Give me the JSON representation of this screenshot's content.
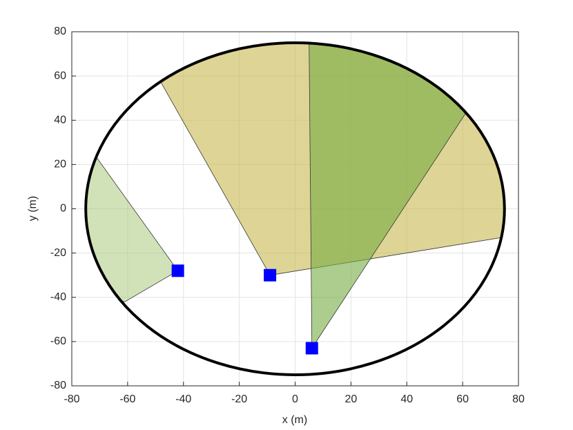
{
  "chart_data": {
    "type": "scatter",
    "xlabel": "x (m)",
    "ylabel": "y (m)",
    "xlim": [
      -80,
      80
    ],
    "ylim": [
      -80,
      80
    ],
    "xticks": [
      -80,
      -60,
      -40,
      -20,
      0,
      20,
      40,
      60,
      80
    ],
    "yticks": [
      -80,
      -60,
      -40,
      -20,
      0,
      20,
      40,
      60,
      80
    ],
    "grid": true,
    "boundary": {
      "center": [
        0,
        0
      ],
      "radius": 75,
      "color": "#000000"
    },
    "regions": [
      {
        "apex": [
          -42,
          -28
        ],
        "arc_start": [
          -71,
          23
        ],
        "arc_end": [
          -61,
          -42
        ],
        "color": "#a3c572",
        "alpha": 0.5
      },
      {
        "apex": [
          -9,
          -30
        ],
        "arc_start": [
          74,
          -13
        ],
        "arc_end": [
          -48,
          57
        ],
        "color": "#c8b84e",
        "alpha": 0.6
      },
      {
        "apex": [
          6,
          -63
        ],
        "arc_start": [
          61,
          43
        ],
        "arc_end": [
          5,
          75
        ],
        "color": "#77ab43",
        "alpha": 0.6
      }
    ],
    "series": [
      {
        "color": "#0000ff",
        "x": [
          -42,
          -9,
          6
        ],
        "values": [
          -28,
          -30,
          -63
        ]
      }
    ]
  }
}
